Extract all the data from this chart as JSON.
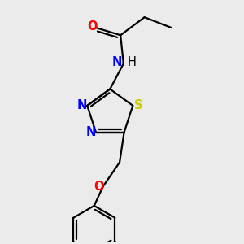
{
  "bg_color": "#ebebeb",
  "bond_color": "#000000",
  "N_color": "#0000ff",
  "O_color": "#ff0000",
  "S_color": "#cccc00",
  "line_width": 1.6,
  "font_size": 10.5,
  "fig_width": 3.0,
  "fig_height": 3.0,
  "dpi": 100,
  "xlim": [
    0,
    10
  ],
  "ylim": [
    0,
    10
  ]
}
